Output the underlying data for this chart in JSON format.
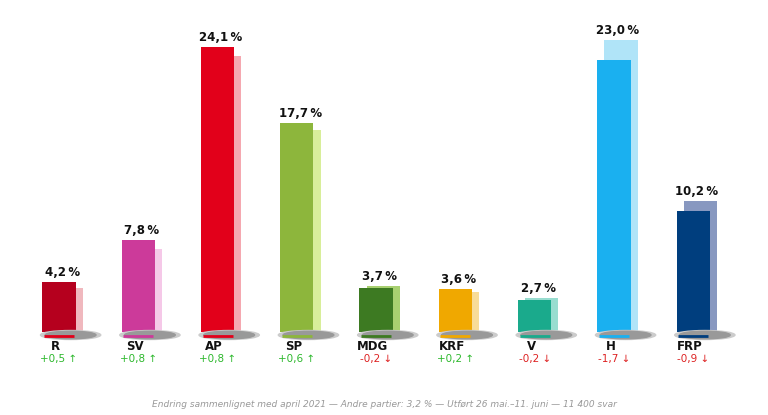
{
  "parties": [
    "R",
    "SV",
    "AP",
    "SP",
    "MDG",
    "KRF",
    "V",
    "H",
    "FRP"
  ],
  "values": [
    4.2,
    7.8,
    24.1,
    17.7,
    3.7,
    3.6,
    2.7,
    23.0,
    10.2
  ],
  "prev_values": [
    3.7,
    7.0,
    23.3,
    17.1,
    3.9,
    3.4,
    2.9,
    24.7,
    11.1
  ],
  "changes": [
    "+0,5",
    "+0,8",
    "+0,8",
    "+0,6",
    "-0,2",
    "+0,2",
    "-0,2",
    "-1,7",
    "-0,9"
  ],
  "change_positive": [
    true,
    true,
    true,
    true,
    false,
    true,
    false,
    false,
    false
  ],
  "bar_colors": [
    "#b5001e",
    "#cc3a9a",
    "#e2001a",
    "#8db63c",
    "#3d7a22",
    "#f0a800",
    "#1aaa8c",
    "#1ab0f0",
    "#003e7e"
  ],
  "prev_bar_colors": [
    "#f0b8be",
    "#f5c8e8",
    "#f5a8b0",
    "#d8ee9a",
    "#a8d070",
    "#f8dc98",
    "#98ddd0",
    "#b0e4f8",
    "#8898c0"
  ],
  "underline_colors": [
    "#e2001a",
    "#cc3a9a",
    "#e2001a",
    "#8db63c",
    "#3d7a22",
    "#f0a800",
    "#1aaa8c",
    "#1ab0f0",
    "#003e7e"
  ],
  "background_color": "#ffffff",
  "footer_text": "Endring sammenlignet med april 2021 — Andre partier: 3,2 % — Utført 26 mai.–11. juni — 11 400 svar"
}
